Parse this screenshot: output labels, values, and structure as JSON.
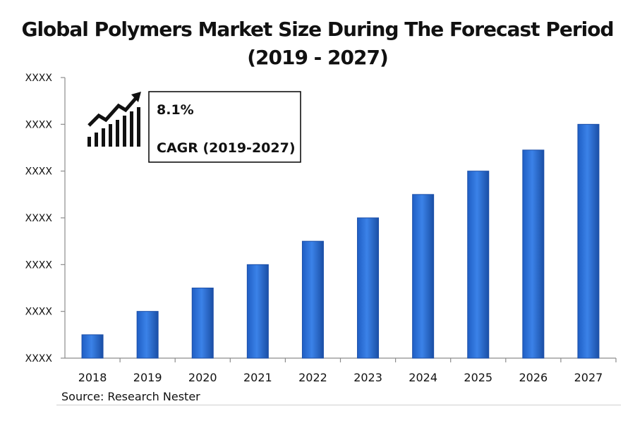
{
  "chart_data": {
    "type": "bar",
    "title": [
      "Global Polymers Market Size During The Forecast Period",
      "(2019 - 2027)"
    ],
    "categories": [
      "2018",
      "2019",
      "2020",
      "2021",
      "2022",
      "2023",
      "2024",
      "2025",
      "2026",
      "2027"
    ],
    "values": [
      1.0,
      2.0,
      3.0,
      4.0,
      5.0,
      6.0,
      7.0,
      8.0,
      8.9,
      10.0
    ],
    "ylim": [
      0,
      12
    ],
    "y_tick_labels": [
      "XXXX",
      "XXXX",
      "XXXX",
      "XXXX",
      "XXXX",
      "XXXX",
      "XXXX"
    ],
    "xlabel": "",
    "ylabel": "",
    "grid": false,
    "bar_color": "#2E6FD6",
    "bar_edge_color": "#1C4FA8",
    "annotation": {
      "value": "8.1%",
      "label": "CAGR (2019-2027)",
      "icon": "growth-chart-arrow-icon"
    }
  },
  "source": "Source: Research Nester"
}
